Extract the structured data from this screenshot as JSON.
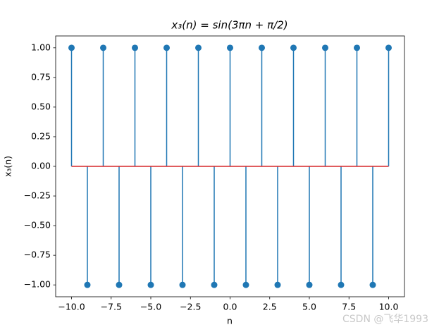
{
  "chart_data": {
    "type": "stem",
    "title": "x₃(n) = sin(3πn + π/2)",
    "xlabel": "n",
    "ylabel": "x₃(n)",
    "watermark": "CSDN @飞华1993",
    "x": [
      -10,
      -9,
      -8,
      -7,
      -6,
      -5,
      -4,
      -3,
      -2,
      -1,
      0,
      1,
      2,
      3,
      4,
      5,
      6,
      7,
      8,
      9,
      10
    ],
    "values": [
      1,
      -1,
      1,
      -1,
      1,
      -1,
      1,
      -1,
      1,
      -1,
      1,
      -1,
      1,
      -1,
      1,
      -1,
      1,
      -1,
      1,
      -1,
      1
    ],
    "color": "#1f77b4",
    "baseline_color": "#d62728",
    "xlim": [
      -11,
      11
    ],
    "ylim": [
      -1.1,
      1.1
    ],
    "xticks": [
      {
        "value": -10,
        "label": "−10.0"
      },
      {
        "value": -7.5,
        "label": "−7.5"
      },
      {
        "value": -5,
        "label": "−5.0"
      },
      {
        "value": -2.5,
        "label": "−2.5"
      },
      {
        "value": 0,
        "label": "0.0"
      },
      {
        "value": 2.5,
        "label": "2.5"
      },
      {
        "value": 5,
        "label": "5.0"
      },
      {
        "value": 7.5,
        "label": "7.5"
      },
      {
        "value": 10,
        "label": "10.0"
      }
    ],
    "yticks": [
      {
        "value": -1,
        "label": "−1.00"
      },
      {
        "value": -0.75,
        "label": "−0.75"
      },
      {
        "value": -0.5,
        "label": "−0.50"
      },
      {
        "value": -0.25,
        "label": "−0.25"
      },
      {
        "value": 0,
        "label": "0.00"
      },
      {
        "value": 0.25,
        "label": "0.25"
      },
      {
        "value": 0.5,
        "label": "0.50"
      },
      {
        "value": 0.75,
        "label": "0.75"
      },
      {
        "value": 1,
        "label": "1.00"
      }
    ]
  }
}
